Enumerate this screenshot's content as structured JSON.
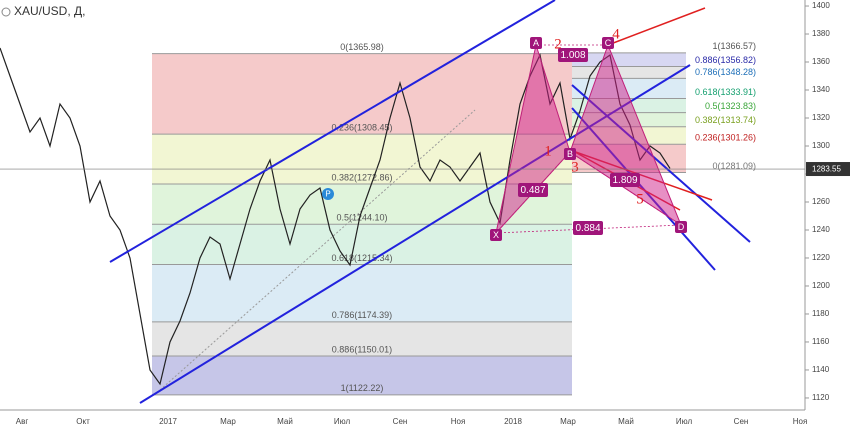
{
  "chart_data": {
    "type": "line",
    "title": "XAU/USD, Д,",
    "series": [
      {
        "name": "XAU/USD",
        "color": "#222222",
        "values": [
          1370,
          1350,
          1330,
          1310,
          1320,
          1300,
          1330,
          1320,
          1300,
          1260,
          1275,
          1250,
          1240,
          1220,
          1180,
          1140,
          1130,
          1160,
          1175,
          1195,
          1220,
          1235,
          1230,
          1205,
          1230,
          1255,
          1275,
          1290,
          1255,
          1230,
          1255,
          1265,
          1270,
          1240,
          1225,
          1215,
          1250,
          1270,
          1290,
          1320,
          1345,
          1320,
          1285,
          1275,
          1290,
          1285,
          1275,
          1285,
          1295,
          1260,
          1245,
          1290,
          1330,
          1350,
          1365,
          1330,
          1345,
          1305,
          1325,
          1350,
          1360,
          1365,
          1330,
          1315,
          1290,
          1300,
          1295,
          1284
        ]
      }
    ],
    "ylim": [
      1111.4,
      1404.3
    ],
    "yticks": [
      1120,
      1140,
      1160,
      1180,
      1200,
      1220,
      1240,
      1260,
      1280,
      1300,
      1320,
      1340,
      1360,
      1380,
      1400
    ],
    "xtick_labels": [
      "Авг",
      "Окт",
      "2017",
      "Мар",
      "Май",
      "Июл",
      "Сен",
      "Ноя",
      "2018",
      "Мар",
      "Май",
      "Июл",
      "Сен",
      "Ноя"
    ],
    "last_price": {
      "value": 1283.55,
      "label": "1283.55"
    },
    "fib_left": [
      {
        "value": 1365.98,
        "label": "0(1365.98)",
        "color": "#f2b8b8"
      },
      {
        "value": 1308.45,
        "label": "0.236(1308.45)",
        "color": "#eef3c4"
      },
      {
        "value": 1272.86,
        "label": "0.382(1272.86)",
        "color": "#d6f0cf"
      },
      {
        "value": 1244.1,
        "label": "0.5(1244.10)",
        "color": "#cdeedb"
      },
      {
        "value": 1215.34,
        "label": "0.618(1215.34)",
        "color": "#cfe4f2"
      },
      {
        "value": 1174.39,
        "label": "0.786(1174.39)",
        "color": "#dcdcdc"
      },
      {
        "value": 1150.01,
        "label": "0.886(1150.01)",
        "color": "#b3b3e0"
      },
      {
        "value": 1122.22,
        "label": "1(1122.22)",
        "color": null
      }
    ],
    "fib_right": [
      {
        "value": 1366.57,
        "label": "1(1366.57)",
        "color": "#c9c9ee",
        "text_color": "#555555"
      },
      {
        "value": 1356.82,
        "label": "0.886(1356.82)",
        "color": "#dcdcdc",
        "text_color": "#2a2aa8"
      },
      {
        "value": 1348.28,
        "label": "0.786(1348.28)",
        "color": "#cfe4f2",
        "text_color": "#1e6fb8"
      },
      {
        "value": 1333.91,
        "label": "0.618(1333.91)",
        "color": "#cdeedb",
        "text_color": "#16a070"
      },
      {
        "value": 1323.83,
        "label": "0.5(1323.83)",
        "color": "#d6f0cf",
        "text_color": "#3aa63a"
      },
      {
        "value": 1313.74,
        "label": "0.382(1313.74)",
        "color": "#eef3c4",
        "text_color": "#7aa020"
      },
      {
        "value": 1301.26,
        "label": "0.236(1301.26)",
        "color": "#f2b8b8",
        "text_color": "#c02020"
      },
      {
        "value": 1281.09,
        "label": "0(1281.09)",
        "color": null,
        "text_color": "#777777"
      }
    ],
    "pattern_points": [
      "X",
      "A",
      "B",
      "C",
      "D"
    ],
    "pattern_ratios": [
      "0.487",
      "1.008",
      "1.809",
      "0.884"
    ],
    "wave_labels": [
      "1",
      "2",
      "3",
      "4",
      "5"
    ],
    "marker": "P"
  }
}
